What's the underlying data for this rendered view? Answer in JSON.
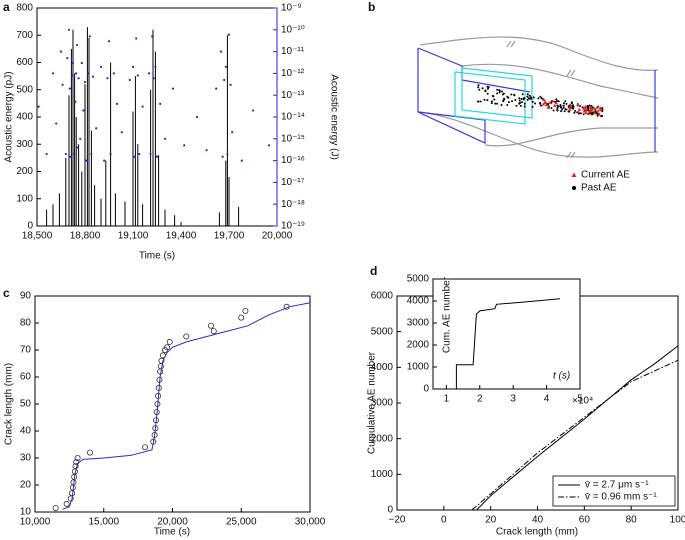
{
  "chart_data": [
    {
      "type": "combo",
      "panel": "a",
      "xlabel": "Time (s)",
      "ylabel": "Acoustic energy (pJ)",
      "y2label": "Acoustic energy (J)",
      "xlim": [
        18500,
        20000
      ],
      "xticks": [
        {
          "value": 18500,
          "label": "18,500"
        },
        {
          "value": 18800,
          "label": "18,800"
        },
        {
          "value": 19100,
          "label": "19,100"
        },
        {
          "value": 19400,
          "label": "19,400"
        },
        {
          "value": 19700,
          "label": "19,700"
        },
        {
          "value": 20000,
          "label": "20,000"
        }
      ],
      "ylim": [
        0,
        800
      ],
      "yticks": [
        0,
        100,
        200,
        300,
        400,
        500,
        600,
        700,
        800
      ],
      "y2lim": [
        1e-19,
        1e-09
      ],
      "y2log": true,
      "y2color": "#2626c8",
      "y2ticks": [
        {
          "value": 1e-19,
          "label": "10⁻¹⁹"
        },
        {
          "value": 1e-18,
          "label": "10⁻¹⁸"
        },
        {
          "value": 1e-17,
          "label": "10⁻¹⁷"
        },
        {
          "value": 1e-16,
          "label": "10⁻¹⁶"
        },
        {
          "value": 1e-15,
          "label": "10⁻¹⁵"
        },
        {
          "value": 1e-14,
          "label": "10⁻¹⁴"
        },
        {
          "value": 1e-13,
          "label": "10⁻¹³"
        },
        {
          "value": 1e-12,
          "label": "10⁻¹²"
        },
        {
          "value": 1e-11,
          "label": "10⁻¹¹"
        },
        {
          "value": 1e-10,
          "label": "10⁻¹⁰"
        },
        {
          "value": 1e-09,
          "label": "10⁻⁹"
        }
      ],
      "series": [
        {
          "type": "bar",
          "color": "#000000",
          "x": [
            18560,
            18600,
            18640,
            18680,
            18700,
            18715,
            18725,
            18735,
            18745,
            18760,
            18780,
            18800,
            18815,
            18825,
            18840,
            18860,
            18900,
            18930,
            18960,
            18990,
            19050,
            19100,
            19115,
            19130,
            19160,
            19210,
            19225,
            19240,
            19260,
            19300,
            19360,
            19640,
            19680,
            19690,
            19700,
            19760
          ],
          "values": [
            60,
            80,
            120,
            250,
            480,
            650,
            720,
            560,
            400,
            300,
            200,
            520,
            730,
            690,
            350,
            150,
            100,
            240,
            600,
            120,
            90,
            420,
            550,
            300,
            80,
            500,
            720,
            640,
            260,
            60,
            40,
            50,
            240,
            700,
            180,
            70
          ]
        },
        {
          "type": "scatter",
          "axis": "y2",
          "color": "#2626c8",
          "x": [
            18510,
            18560,
            18600,
            18620,
            18650,
            18660,
            18680,
            18690,
            18700,
            18705,
            18710,
            18720,
            18725,
            18730,
            18740,
            18745,
            18750,
            18755,
            18760,
            18770,
            18780,
            18790,
            18800,
            18810,
            18820,
            18830,
            18840,
            18850,
            18870,
            18900,
            18920,
            18940,
            18950,
            18960,
            18980,
            19000,
            19030,
            19080,
            19100,
            19110,
            19120,
            19130,
            19140,
            19160,
            19200,
            19210,
            19220,
            19230,
            19240,
            19250,
            19270,
            19300,
            19350,
            19420,
            19500,
            19560,
            19620,
            19650,
            19660,
            19670,
            19680,
            19690,
            19700,
            19710,
            19720,
            19780,
            19850,
            19950
          ],
          "values": [
            3e-14,
            2e-16,
            1e-12,
            5e-15,
            1e-11,
            3e-13,
            2e-16,
            5e-12,
            1e-10,
            2e-13,
            1.5e-16,
            8e-13,
            3e-12,
            2e-16,
            5e-14,
            1e-12,
            2e-11,
            4e-16,
            6e-13,
            1e-15,
            3e-12,
            2e-14,
            4e-13,
            1e-16,
            1e-12,
            5e-11,
            2e-16,
            7e-13,
            3e-15,
            2e-12,
            1e-16,
            6e-13,
            3e-11,
            2e-16,
            1e-12,
            4e-14,
            2e-15,
            5e-13,
            2e-12,
            1.5e-16,
            4e-11,
            8e-13,
            2e-16,
            3e-14,
            1e-12,
            2e-16,
            5e-11,
            6e-13,
            2e-12,
            1.5e-16,
            4e-14,
            1e-15,
            2e-13,
            5e-16,
            1e-14,
            3e-16,
            2e-13,
            1e-11,
            1.5e-16,
            5e-13,
            2e-12,
            2e-16,
            6e-11,
            3e-13,
            2e-15,
            1e-16,
            2e-14,
            5e-16
          ]
        }
      ]
    },
    {
      "type": "diagram3d",
      "panel": "b",
      "legend": [
        {
          "label": "Current AE",
          "color": "#e8221f",
          "marker": "triangle"
        },
        {
          "label": "Past AE",
          "color": "#000000",
          "marker": "dot"
        }
      ]
    },
    {
      "type": "combo",
      "panel": "c",
      "xlabel": "Time (s)",
      "ylabel": "Crack length (mm)",
      "xlim": [
        10000,
        30000
      ],
      "xticks": [
        {
          "value": 10000,
          "label": "10,000"
        },
        {
          "value": 15000,
          "label": "15,000"
        },
        {
          "value": 20000,
          "label": "20,000"
        },
        {
          "value": 25000,
          "label": "25,000"
        },
        {
          "value": 30000,
          "label": "30,000"
        }
      ],
      "ylim": [
        10,
        90
      ],
      "yticks": [
        10,
        20,
        30,
        40,
        50,
        60,
        70,
        80,
        90
      ],
      "series": [
        {
          "type": "line",
          "color": "#2b2bd0",
          "x": [
            12000,
            12500,
            12700,
            12900,
            13100,
            13500,
            15000,
            17000,
            18500,
            18700,
            18900,
            19100,
            19300,
            19600,
            20000,
            21000,
            22500,
            24000,
            25500,
            27000,
            28500,
            30000
          ],
          "values": [
            11,
            12,
            15,
            24,
            28,
            29.5,
            30,
            31,
            33,
            38,
            48,
            60,
            66,
            69,
            71,
            73,
            75,
            77,
            79,
            83,
            86,
            87.5
          ]
        },
        {
          "type": "scatter",
          "marker": "open",
          "color": "#333333",
          "x": [
            11500,
            12300,
            12600,
            12700,
            12750,
            12800,
            12850,
            12900,
            12950,
            13000,
            13100,
            14000,
            18000,
            18600,
            18700,
            18750,
            18800,
            18850,
            18900,
            18950,
            19000,
            19050,
            19100,
            19150,
            19200,
            19300,
            19450,
            19600,
            19800,
            21000,
            22800,
            23000,
            25000,
            25300,
            28300
          ],
          "values": [
            11.5,
            13,
            15,
            17,
            19,
            21,
            23,
            25,
            27,
            28.5,
            30,
            32,
            34,
            36,
            38.5,
            41,
            44,
            47,
            50,
            53,
            56,
            59,
            62,
            64,
            66,
            68,
            70,
            71,
            73,
            75,
            79,
            77,
            82,
            84.5,
            86
          ]
        }
      ]
    },
    {
      "type": "combo",
      "panel": "d",
      "xlabel": "Crack length (mm)",
      "ylabel": "Cumulative AE number",
      "xlim": [
        -20,
        100
      ],
      "xticks": [
        {
          "value": -20,
          "label": "−20"
        },
        0,
        20,
        40,
        60,
        80,
        100
      ],
      "ylim": [
        0,
        6000
      ],
      "yticks": [
        0,
        1000,
        2000,
        3000,
        4000,
        5000,
        6000
      ],
      "legend_loc": "lower right",
      "series": [
        {
          "type": "line",
          "name": "v̄ = 2.7 μm s⁻¹",
          "color": "#000000",
          "linestyle": "solid",
          "x": [
            14,
            20,
            40,
            60,
            80,
            90,
            100
          ],
          "values": [
            0,
            400,
            1500,
            2550,
            3650,
            4100,
            4600
          ]
        },
        {
          "type": "line",
          "name": "v̄ = 0.96 mm s⁻¹",
          "color": "#000000",
          "linestyle": "dashdot",
          "x": [
            12,
            20,
            40,
            60,
            80,
            90,
            100
          ],
          "values": [
            0,
            450,
            1600,
            2600,
            3600,
            3900,
            4200
          ]
        }
      ]
    },
    {
      "type": "combo",
      "inset": true,
      "xlabel": "t (s)",
      "ylabel": "Cum. AE number",
      "x_offset_label": "×10⁴",
      "xlim": [
        0.6,
        5
      ],
      "xticks": [
        1,
        2,
        3,
        4,
        5
      ],
      "ylim": [
        0,
        5000
      ],
      "yticks": [
        0,
        1000,
        2000,
        3000,
        4000,
        5000
      ],
      "series": [
        {
          "type": "line",
          "color": "#000000",
          "linestyle": "solid",
          "x": [
            1.3,
            1.3,
            1.8,
            1.9,
            2.0,
            2.45,
            2.5,
            3.3,
            4.4
          ],
          "values": [
            0,
            1100,
            1100,
            3400,
            3550,
            3650,
            3850,
            3950,
            4100
          ]
        }
      ]
    }
  ]
}
